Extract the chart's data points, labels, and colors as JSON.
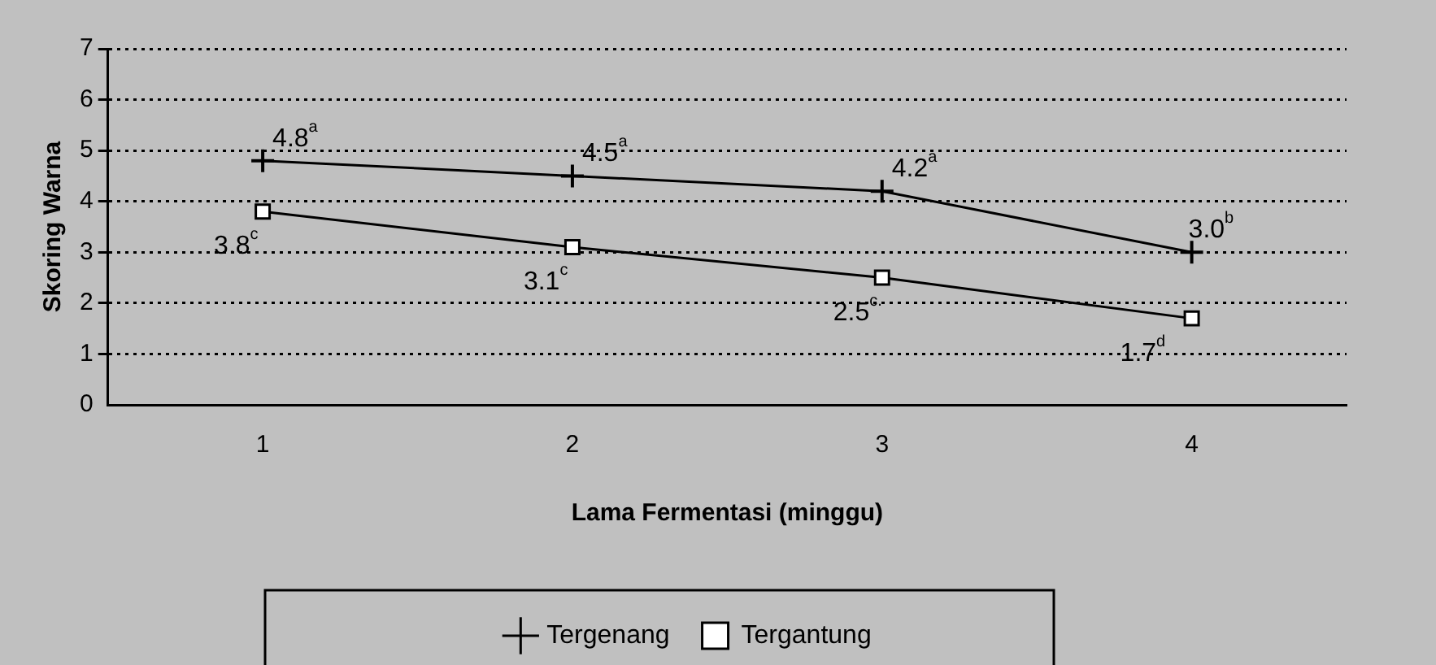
{
  "chart_data": {
    "type": "line",
    "xlabel": "Lama Fermentasi (minggu)",
    "ylabel": "Skoring Warna",
    "categories": [
      "1",
      "2",
      "3",
      "4"
    ],
    "series": [
      {
        "name": "Tergenang",
        "color": "#000000",
        "marker": "cross",
        "values": [
          4.8,
          4.5,
          4.2,
          3.0
        ],
        "value_labels": [
          "4.8$^{a}$",
          "4.5$^{a}$",
          "4.2$^{a}$",
          "3.0$^{b}$"
        ]
      },
      {
        "name": "Tergantung",
        "color": "#000000",
        "marker": "square",
        "values": [
          3.8,
          3.1,
          2.5,
          1.7
        ],
        "value_labels": [
          "3.8$^{c}$",
          "3.1$^{c}$",
          "2.5$^{c.}$",
          "1.7$^{d}$"
        ]
      }
    ],
    "ylim": [
      0,
      7
    ],
    "yticks": [
      0,
      1,
      2,
      3,
      4,
      5,
      6,
      7
    ],
    "grid": "y",
    "legend": "bottom",
    "line_style": "solid"
  }
}
